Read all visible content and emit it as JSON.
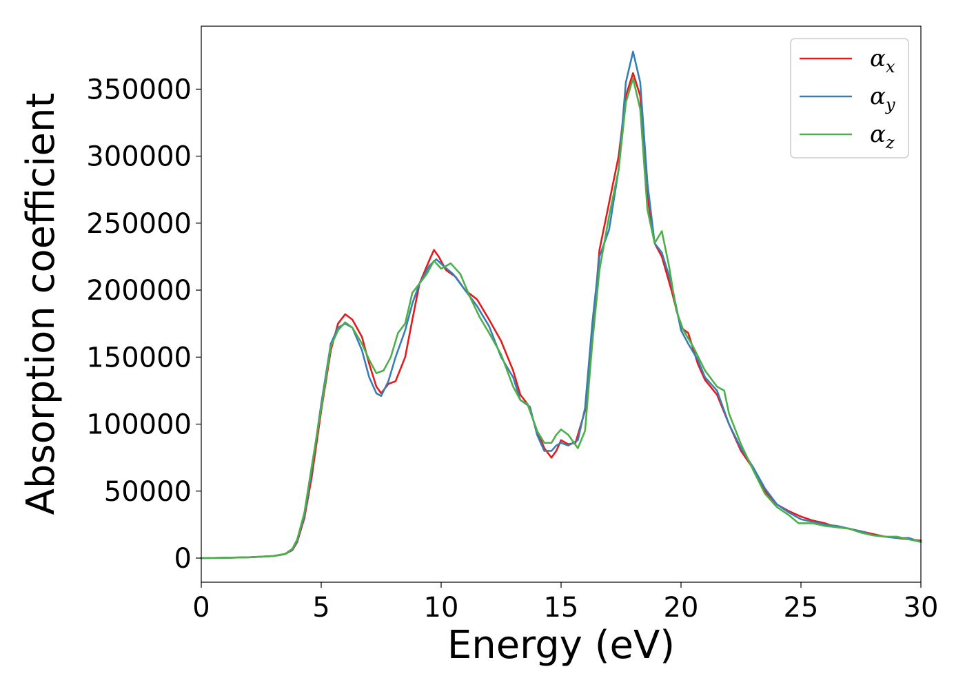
{
  "chart_data": {
    "type": "line",
    "xlabel": "Energy (eV)",
    "ylabel": "Absorption coefficient",
    "xlim": [
      0,
      30
    ],
    "ylim": [
      -18000,
      397000
    ],
    "xticks": [
      0,
      5,
      10,
      15,
      20,
      25,
      30
    ],
    "yticks": [
      0,
      50000,
      100000,
      150000,
      200000,
      250000,
      300000,
      350000
    ],
    "grid": false,
    "legend_position": "top-right",
    "series": [
      {
        "name": "α",
        "subscript": "x",
        "color": "#e41a1c",
        "points": [
          [
            0,
            0
          ],
          [
            1,
            200
          ],
          [
            2,
            600
          ],
          [
            3,
            1500
          ],
          [
            3.5,
            3000
          ],
          [
            3.8,
            6000
          ],
          [
            4.0,
            12000
          ],
          [
            4.3,
            30000
          ],
          [
            4.6,
            60000
          ],
          [
            5.0,
            110000
          ],
          [
            5.4,
            155000
          ],
          [
            5.7,
            175000
          ],
          [
            6.0,
            182000
          ],
          [
            6.3,
            178000
          ],
          [
            6.7,
            165000
          ],
          [
            7.0,
            145000
          ],
          [
            7.3,
            128000
          ],
          [
            7.5,
            123000
          ],
          [
            7.8,
            130000
          ],
          [
            8.1,
            132000
          ],
          [
            8.5,
            150000
          ],
          [
            8.8,
            178000
          ],
          [
            9.1,
            205000
          ],
          [
            9.5,
            222000
          ],
          [
            9.7,
            230000
          ],
          [
            9.9,
            225000
          ],
          [
            10.2,
            215000
          ],
          [
            10.6,
            210000
          ],
          [
            11.0,
            200000
          ],
          [
            11.5,
            193000
          ],
          [
            12.0,
            178000
          ],
          [
            12.5,
            162000
          ],
          [
            13.0,
            140000
          ],
          [
            13.3,
            122000
          ],
          [
            13.6,
            115000
          ],
          [
            14.0,
            95000
          ],
          [
            14.3,
            82000
          ],
          [
            14.6,
            75000
          ],
          [
            14.8,
            80000
          ],
          [
            15.0,
            88000
          ],
          [
            15.3,
            85000
          ],
          [
            15.6,
            86000
          ],
          [
            16.0,
            110000
          ],
          [
            16.3,
            165000
          ],
          [
            16.6,
            230000
          ],
          [
            17.0,
            265000
          ],
          [
            17.4,
            300000
          ],
          [
            17.7,
            345000
          ],
          [
            18.0,
            362000
          ],
          [
            18.3,
            345000
          ],
          [
            18.6,
            270000
          ],
          [
            18.9,
            235000
          ],
          [
            19.2,
            225000
          ],
          [
            19.6,
            200000
          ],
          [
            20.0,
            172000
          ],
          [
            20.3,
            168000
          ],
          [
            20.7,
            145000
          ],
          [
            21.0,
            133000
          ],
          [
            21.5,
            122000
          ],
          [
            22.0,
            100000
          ],
          [
            22.5,
            80000
          ],
          [
            23.0,
            67000
          ],
          [
            23.5,
            50000
          ],
          [
            24.0,
            40000
          ],
          [
            24.5,
            35000
          ],
          [
            25.0,
            31000
          ],
          [
            25.5,
            28000
          ],
          [
            26.0,
            26000
          ],
          [
            26.5,
            23000
          ],
          [
            27.0,
            22000
          ],
          [
            27.5,
            20000
          ],
          [
            28.0,
            18000
          ],
          [
            28.5,
            16000
          ],
          [
            29.0,
            15000
          ],
          [
            29.5,
            14000
          ],
          [
            30.0,
            13000
          ]
        ]
      },
      {
        "name": "α",
        "subscript": "y",
        "color": "#377eb8",
        "points": [
          [
            0,
            0
          ],
          [
            1,
            200
          ],
          [
            2,
            600
          ],
          [
            3,
            1500
          ],
          [
            3.5,
            3000
          ],
          [
            3.8,
            6500
          ],
          [
            4.0,
            13000
          ],
          [
            4.3,
            32000
          ],
          [
            4.6,
            65000
          ],
          [
            5.0,
            115000
          ],
          [
            5.4,
            160000
          ],
          [
            5.7,
            172000
          ],
          [
            6.0,
            175000
          ],
          [
            6.3,
            172000
          ],
          [
            6.7,
            155000
          ],
          [
            7.0,
            135000
          ],
          [
            7.3,
            123000
          ],
          [
            7.5,
            121000
          ],
          [
            7.8,
            132000
          ],
          [
            8.1,
            150000
          ],
          [
            8.5,
            170000
          ],
          [
            8.8,
            190000
          ],
          [
            9.1,
            205000
          ],
          [
            9.5,
            218000
          ],
          [
            9.8,
            223000
          ],
          [
            10.1,
            218000
          ],
          [
            10.5,
            212000
          ],
          [
            11.0,
            200000
          ],
          [
            11.5,
            188000
          ],
          [
            12.0,
            173000
          ],
          [
            12.5,
            150000
          ],
          [
            13.0,
            135000
          ],
          [
            13.3,
            118000
          ],
          [
            13.7,
            113000
          ],
          [
            14.0,
            92000
          ],
          [
            14.3,
            80000
          ],
          [
            14.6,
            80000
          ],
          [
            14.8,
            84000
          ],
          [
            15.0,
            86000
          ],
          [
            15.3,
            84000
          ],
          [
            15.7,
            88000
          ],
          [
            16.0,
            112000
          ],
          [
            16.3,
            175000
          ],
          [
            16.6,
            225000
          ],
          [
            17.0,
            245000
          ],
          [
            17.4,
            290000
          ],
          [
            17.7,
            355000
          ],
          [
            18.0,
            378000
          ],
          [
            18.3,
            355000
          ],
          [
            18.6,
            280000
          ],
          [
            18.9,
            235000
          ],
          [
            19.2,
            228000
          ],
          [
            19.6,
            205000
          ],
          [
            20.0,
            170000
          ],
          [
            20.3,
            160000
          ],
          [
            20.7,
            148000
          ],
          [
            21.0,
            135000
          ],
          [
            21.5,
            125000
          ],
          [
            22.0,
            100000
          ],
          [
            22.5,
            82000
          ],
          [
            23.0,
            68000
          ],
          [
            23.5,
            52000
          ],
          [
            24.0,
            40000
          ],
          [
            24.5,
            34000
          ],
          [
            25.0,
            29000
          ],
          [
            25.5,
            27000
          ],
          [
            26.0,
            25000
          ],
          [
            26.5,
            24000
          ],
          [
            27.0,
            22000
          ],
          [
            27.5,
            20000
          ],
          [
            28.0,
            17000
          ],
          [
            28.5,
            16000
          ],
          [
            29.0,
            15000
          ],
          [
            29.5,
            15000
          ],
          [
            30.0,
            12000
          ]
        ]
      },
      {
        "name": "α",
        "subscript": "z",
        "color": "#4daf4a",
        "points": [
          [
            0,
            0
          ],
          [
            1,
            200
          ],
          [
            2,
            600
          ],
          [
            3,
            1500
          ],
          [
            3.5,
            3200
          ],
          [
            3.8,
            7000
          ],
          [
            4.0,
            14000
          ],
          [
            4.3,
            34000
          ],
          [
            4.6,
            68000
          ],
          [
            5.0,
            112000
          ],
          [
            5.4,
            158000
          ],
          [
            5.7,
            170000
          ],
          [
            6.0,
            176000
          ],
          [
            6.3,
            172000
          ],
          [
            6.7,
            160000
          ],
          [
            7.0,
            148000
          ],
          [
            7.3,
            138000
          ],
          [
            7.6,
            140000
          ],
          [
            7.9,
            150000
          ],
          [
            8.2,
            168000
          ],
          [
            8.5,
            175000
          ],
          [
            8.8,
            198000
          ],
          [
            9.1,
            205000
          ],
          [
            9.4,
            212000
          ],
          [
            9.7,
            222000
          ],
          [
            10.0,
            216000
          ],
          [
            10.4,
            220000
          ],
          [
            10.8,
            212000
          ],
          [
            11.2,
            195000
          ],
          [
            11.6,
            180000
          ],
          [
            12.0,
            168000
          ],
          [
            12.5,
            152000
          ],
          [
            13.0,
            128000
          ],
          [
            13.3,
            118000
          ],
          [
            13.6,
            115000
          ],
          [
            14.0,
            95000
          ],
          [
            14.3,
            86000
          ],
          [
            14.6,
            86000
          ],
          [
            14.8,
            92000
          ],
          [
            15.0,
            96000
          ],
          [
            15.3,
            92000
          ],
          [
            15.7,
            82000
          ],
          [
            16.0,
            95000
          ],
          [
            16.3,
            160000
          ],
          [
            16.6,
            215000
          ],
          [
            17.0,
            255000
          ],
          [
            17.4,
            290000
          ],
          [
            17.7,
            340000
          ],
          [
            18.0,
            358000
          ],
          [
            18.3,
            335000
          ],
          [
            18.6,
            260000
          ],
          [
            18.9,
            235000
          ],
          [
            19.2,
            244000
          ],
          [
            19.5,
            218000
          ],
          [
            19.8,
            185000
          ],
          [
            20.1,
            170000
          ],
          [
            20.5,
            158000
          ],
          [
            21.0,
            140000
          ],
          [
            21.5,
            128000
          ],
          [
            21.8,
            125000
          ],
          [
            22.0,
            108000
          ],
          [
            22.5,
            85000
          ],
          [
            23.0,
            66000
          ],
          [
            23.5,
            48000
          ],
          [
            24.0,
            38000
          ],
          [
            24.5,
            32000
          ],
          [
            24.9,
            26000
          ],
          [
            25.5,
            26000
          ],
          [
            26.0,
            24000
          ],
          [
            26.5,
            23000
          ],
          [
            27.0,
            22000
          ],
          [
            27.5,
            19000
          ],
          [
            28.0,
            17000
          ],
          [
            28.5,
            16000
          ],
          [
            29.0,
            16000
          ],
          [
            29.5,
            14000
          ],
          [
            30.0,
            12000
          ]
        ]
      }
    ]
  }
}
